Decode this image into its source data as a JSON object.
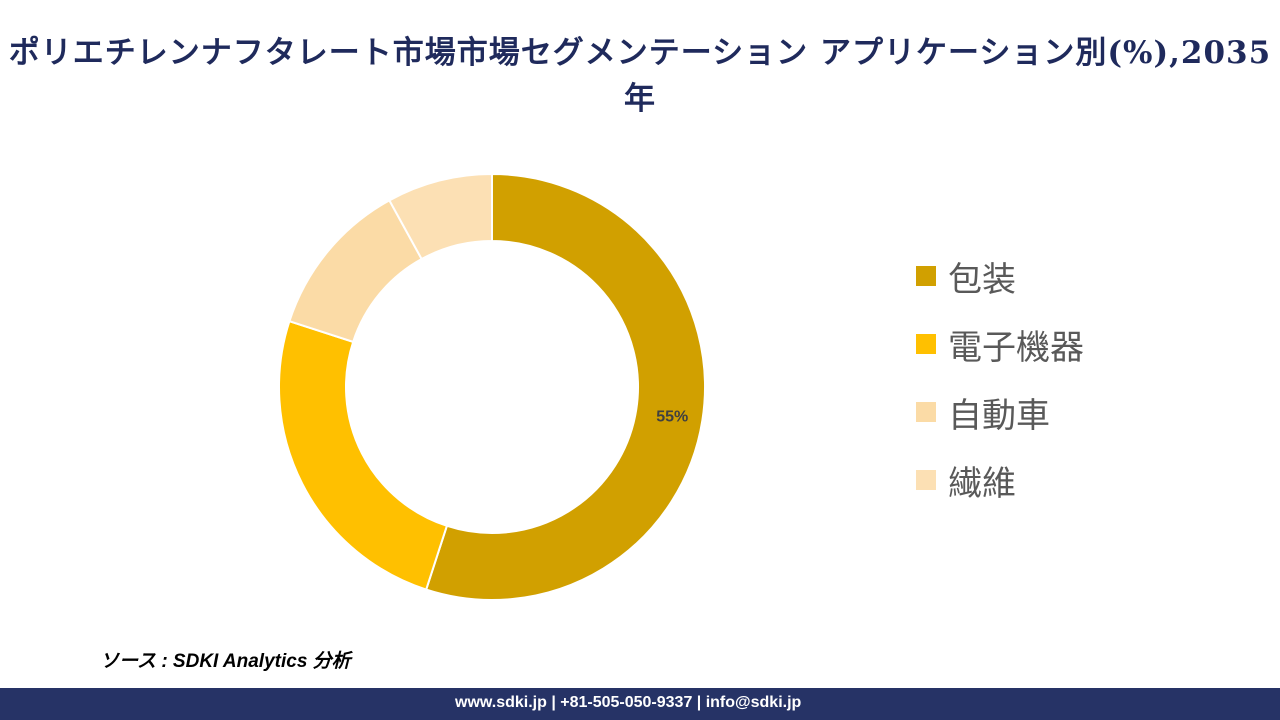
{
  "title": "ポリエチレンナフタレート市場市場セグメンテーション アプリケーション別(%),2035年",
  "chart_data": {
    "type": "pie",
    "variant": "donut",
    "title": "ポリエチレンナフタレート市場市場セグメンテーション アプリケーション別(%),2035年",
    "categories": [
      "包装",
      "電子機器",
      "自動車",
      "繊維"
    ],
    "values": [
      55,
      25,
      12,
      8
    ],
    "colors": [
      "#D1A000",
      "#FFC000",
      "#FBDBA6",
      "#FCE0B4"
    ],
    "data_labels": [
      "55%",
      "",
      "",
      ""
    ],
    "legend_position": "right"
  },
  "source": "ソース : SDKI Analytics 分析",
  "footer": "www.sdki.jp | +81-505-050-9337 | info@sdki.jp"
}
